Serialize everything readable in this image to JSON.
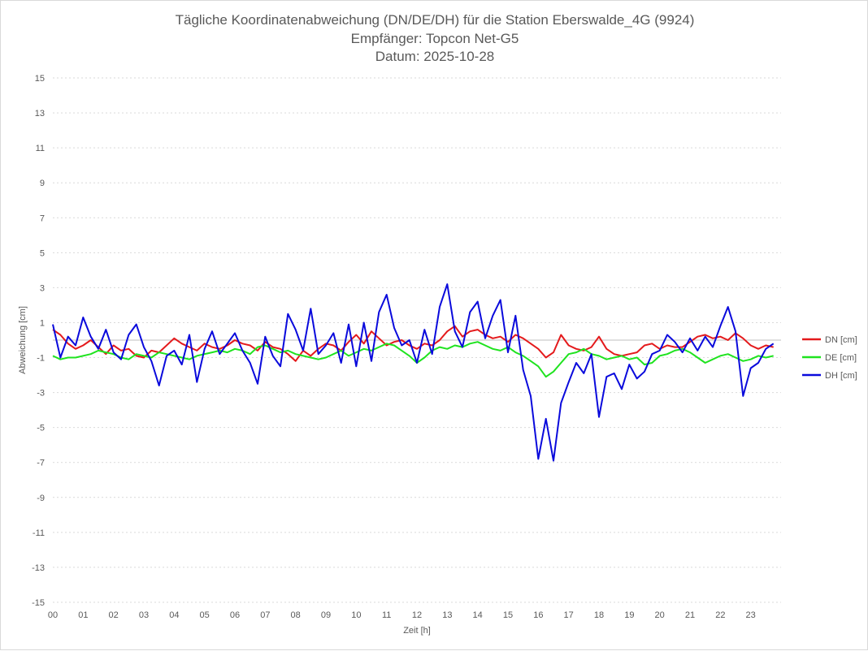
{
  "chart_data": {
    "type": "line",
    "title": [
      "Tägliche Koordinatenabweichung (DN/DE/DH) für die Station Eberswalde_4G (9924)",
      "Empfänger: Topcon Net-G5",
      "Datum: 2025-10-28"
    ],
    "xlabel": "Zeit [h]",
    "ylabel": "Abweichung [cm]",
    "ylim": [
      -15,
      15
    ],
    "yticks": [
      15,
      13,
      11,
      9,
      7,
      5,
      3,
      1,
      -1,
      -3,
      -5,
      -7,
      -9,
      -11,
      -13,
      -15
    ],
    "xlim": [
      0,
      24
    ],
    "xticks": [
      "00",
      "01",
      "02",
      "03",
      "04",
      "05",
      "06",
      "07",
      "08",
      "09",
      "10",
      "11",
      "12",
      "13",
      "14",
      "15",
      "16",
      "17",
      "18",
      "19",
      "20",
      "21",
      "22",
      "23"
    ],
    "grid": true,
    "legend_position": "right",
    "series": [
      {
        "name": "DN [cm]",
        "color": "#e41a1c",
        "x": [
          0.0,
          0.25,
          0.5,
          0.75,
          1.0,
          1.25,
          1.5,
          1.75,
          2.0,
          2.25,
          2.5,
          2.75,
          3.0,
          3.25,
          3.5,
          3.75,
          4.0,
          4.25,
          4.5,
          4.75,
          5.0,
          5.25,
          5.5,
          5.75,
          6.0,
          6.25,
          6.5,
          6.75,
          7.0,
          7.25,
          7.5,
          7.75,
          8.0,
          8.25,
          8.5,
          8.75,
          9.0,
          9.25,
          9.5,
          9.75,
          10.0,
          10.25,
          10.5,
          10.75,
          11.0,
          11.25,
          11.5,
          11.75,
          12.0,
          12.25,
          12.5,
          12.75,
          13.0,
          13.25,
          13.5,
          13.75,
          14.0,
          14.25,
          14.5,
          14.75,
          15.0,
          15.25,
          15.5,
          15.75,
          16.0,
          16.25,
          16.5,
          16.75,
          17.0,
          17.25,
          17.5,
          17.75,
          18.0,
          18.25,
          18.5,
          18.75,
          19.0,
          19.25,
          19.5,
          19.75,
          20.0,
          20.25,
          20.5,
          20.75,
          21.0,
          21.25,
          21.5,
          21.75,
          22.0,
          22.25,
          22.5,
          22.75,
          23.0,
          23.25,
          23.5,
          23.75
        ],
        "values": [
          0.6,
          0.3,
          -0.2,
          -0.5,
          -0.3,
          0.0,
          -0.4,
          -0.8,
          -0.3,
          -0.6,
          -0.5,
          -0.9,
          -1.0,
          -0.6,
          -0.7,
          -0.3,
          0.1,
          -0.2,
          -0.4,
          -0.6,
          -0.2,
          -0.4,
          -0.5,
          -0.3,
          0.0,
          -0.2,
          -0.3,
          -0.6,
          -0.1,
          -0.4,
          -0.5,
          -0.8,
          -1.2,
          -0.6,
          -0.9,
          -0.5,
          -0.2,
          -0.3,
          -0.6,
          -0.1,
          0.3,
          -0.2,
          0.5,
          0.1,
          -0.3,
          -0.1,
          0.0,
          -0.3,
          -0.5,
          -0.2,
          -0.3,
          0.0,
          0.5,
          0.8,
          0.2,
          0.5,
          0.6,
          0.3,
          0.1,
          0.2,
          -0.1,
          0.3,
          0.1,
          -0.2,
          -0.5,
          -1.0,
          -0.7,
          0.3,
          -0.3,
          -0.5,
          -0.6,
          -0.4,
          0.2,
          -0.5,
          -0.8,
          -0.9,
          -0.8,
          -0.7,
          -0.3,
          -0.2,
          -0.5,
          -0.3,
          -0.4,
          -0.4,
          -0.1,
          0.2,
          0.3,
          0.1,
          0.2,
          0.0,
          0.4,
          0.1,
          -0.3,
          -0.5,
          -0.3,
          -0.4
        ]
      },
      {
        "name": "DE [cm]",
        "color": "#1fe31f",
        "x": [
          0.0,
          0.25,
          0.5,
          0.75,
          1.0,
          1.25,
          1.5,
          1.75,
          2.0,
          2.25,
          2.5,
          2.75,
          3.0,
          3.25,
          3.5,
          3.75,
          4.0,
          4.25,
          4.5,
          4.75,
          5.0,
          5.25,
          5.5,
          5.75,
          6.0,
          6.25,
          6.5,
          6.75,
          7.0,
          7.25,
          7.5,
          7.75,
          8.0,
          8.25,
          8.5,
          8.75,
          9.0,
          9.25,
          9.5,
          9.75,
          10.0,
          10.25,
          10.5,
          10.75,
          11.0,
          11.25,
          11.5,
          11.75,
          12.0,
          12.25,
          12.5,
          12.75,
          13.0,
          13.25,
          13.5,
          13.75,
          14.0,
          14.25,
          14.5,
          14.75,
          15.0,
          15.25,
          15.5,
          15.75,
          16.0,
          16.25,
          16.5,
          16.75,
          17.0,
          17.25,
          17.5,
          17.75,
          18.0,
          18.25,
          18.5,
          18.75,
          19.0,
          19.25,
          19.5,
          19.75,
          20.0,
          20.25,
          20.5,
          20.75,
          21.0,
          21.25,
          21.5,
          21.75,
          22.0,
          22.25,
          22.5,
          22.75,
          23.0,
          23.25,
          23.5,
          23.75
        ],
        "values": [
          -0.9,
          -1.1,
          -1.0,
          -1.0,
          -0.9,
          -0.8,
          -0.6,
          -0.7,
          -0.8,
          -1.0,
          -1.1,
          -0.8,
          -0.9,
          -1.0,
          -0.7,
          -0.8,
          -0.9,
          -1.0,
          -1.1,
          -0.9,
          -0.8,
          -0.7,
          -0.6,
          -0.7,
          -0.5,
          -0.6,
          -0.8,
          -0.4,
          -0.3,
          -0.5,
          -0.7,
          -0.6,
          -0.8,
          -0.9,
          -1.0,
          -1.1,
          -1.0,
          -0.8,
          -0.6,
          -0.9,
          -0.7,
          -0.5,
          -0.6,
          -0.4,
          -0.2,
          -0.3,
          -0.6,
          -0.9,
          -1.3,
          -1.0,
          -0.6,
          -0.4,
          -0.5,
          -0.3,
          -0.4,
          -0.2,
          -0.1,
          -0.3,
          -0.5,
          -0.6,
          -0.4,
          -0.7,
          -0.9,
          -1.2,
          -1.5,
          -2.1,
          -1.8,
          -1.3,
          -0.8,
          -0.7,
          -0.5,
          -0.8,
          -0.9,
          -1.1,
          -1.0,
          -0.9,
          -1.1,
          -1.0,
          -1.4,
          -1.3,
          -0.9,
          -0.8,
          -0.6,
          -0.5,
          -0.7,
          -1.0,
          -1.3,
          -1.1,
          -0.9,
          -0.8,
          -1.0,
          -1.2,
          -1.1,
          -0.9,
          -1.0,
          -0.9
        ]
      },
      {
        "name": "DH [cm]",
        "color": "#0a0adc",
        "x": [
          0.0,
          0.25,
          0.5,
          0.75,
          1.0,
          1.25,
          1.5,
          1.75,
          2.0,
          2.25,
          2.5,
          2.75,
          3.0,
          3.25,
          3.5,
          3.75,
          4.0,
          4.25,
          4.5,
          4.75,
          5.0,
          5.25,
          5.5,
          5.75,
          6.0,
          6.25,
          6.5,
          6.75,
          7.0,
          7.25,
          7.5,
          7.75,
          8.0,
          8.25,
          8.5,
          8.75,
          9.0,
          9.25,
          9.5,
          9.75,
          10.0,
          10.25,
          10.5,
          10.75,
          11.0,
          11.25,
          11.5,
          11.75,
          12.0,
          12.25,
          12.5,
          12.75,
          13.0,
          13.25,
          13.5,
          13.75,
          14.0,
          14.25,
          14.5,
          14.75,
          15.0,
          15.25,
          15.5,
          15.75,
          16.0,
          16.25,
          16.5,
          16.75,
          17.0,
          17.25,
          17.5,
          17.75,
          18.0,
          18.25,
          18.5,
          18.75,
          19.0,
          19.25,
          19.5,
          19.75,
          20.0,
          20.25,
          20.5,
          20.75,
          21.0,
          21.25,
          21.5,
          21.75,
          22.0,
          22.25,
          22.5,
          22.75,
          23.0,
          23.25,
          23.5,
          23.75
        ],
        "values": [
          0.9,
          -1.0,
          0.2,
          -0.3,
          1.3,
          0.2,
          -0.5,
          0.6,
          -0.7,
          -1.1,
          0.3,
          0.9,
          -0.4,
          -1.2,
          -2.6,
          -0.9,
          -0.6,
          -1.4,
          0.3,
          -2.4,
          -0.5,
          0.5,
          -0.8,
          -0.2,
          0.4,
          -0.6,
          -1.3,
          -2.5,
          0.2,
          -0.9,
          -1.5,
          1.5,
          0.6,
          -0.6,
          1.8,
          -0.8,
          -0.3,
          0.4,
          -1.3,
          0.9,
          -1.5,
          1.0,
          -1.2,
          1.6,
          2.6,
          0.7,
          -0.3,
          0.0,
          -1.3,
          0.6,
          -0.8,
          1.9,
          3.2,
          0.5,
          -0.4,
          1.6,
          2.2,
          0.1,
          1.4,
          2.3,
          -0.7,
          1.4,
          -1.7,
          -3.2,
          -6.8,
          -4.5,
          -6.9,
          -3.6,
          -2.4,
          -1.3,
          -1.9,
          -0.8,
          -4.4,
          -2.1,
          -1.9,
          -2.8,
          -1.4,
          -2.2,
          -1.8,
          -0.8,
          -0.6,
          0.3,
          -0.1,
          -0.7,
          0.1,
          -0.6,
          0.2,
          -0.4,
          0.8,
          1.9,
          0.5,
          -3.2,
          -1.6,
          -1.3,
          -0.5,
          -0.2
        ]
      }
    ]
  }
}
